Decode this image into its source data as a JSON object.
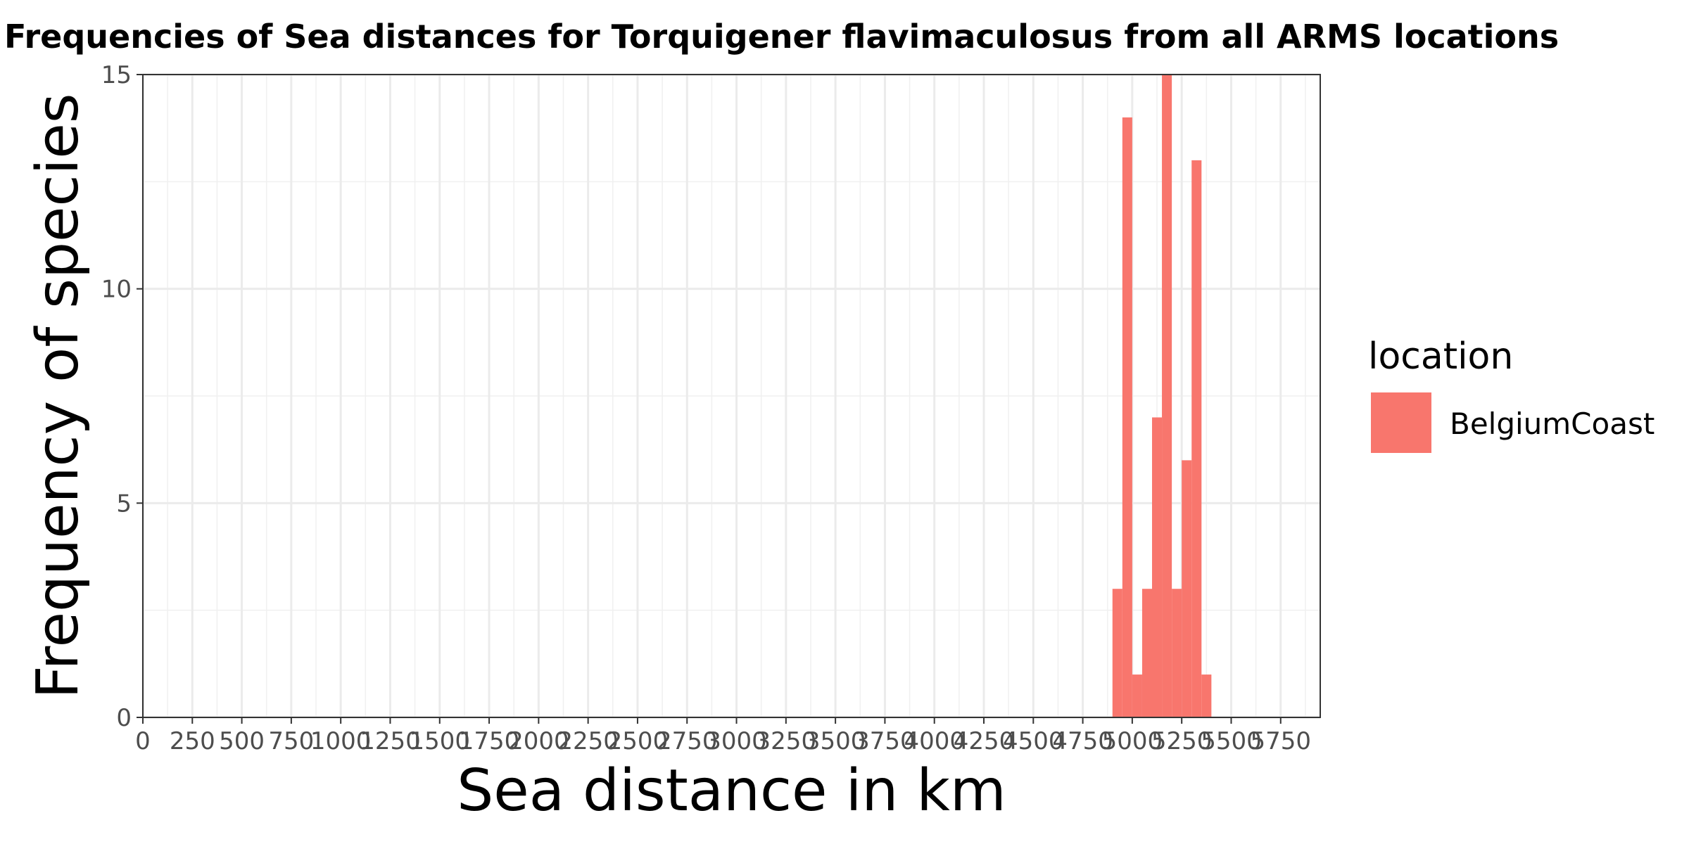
{
  "chart_data": {
    "type": "bar",
    "title": "Frequencies of Sea distances for Torquigener flavimaculosus from all ARMS locations",
    "xlabel": "Sea distance in km",
    "ylabel": "Frequency of species",
    "xlim": [
      0,
      5950
    ],
    "ylim": [
      0,
      15
    ],
    "x_ticks": [
      0,
      250,
      500,
      750,
      1000,
      1250,
      1500,
      1750,
      2000,
      2250,
      2500,
      2750,
      3000,
      3250,
      3500,
      3750,
      4000,
      4250,
      4500,
      4750,
      5000,
      5250,
      5500,
      5750
    ],
    "x_tick_labels": [
      "0",
      "250",
      "500",
      "750",
      "1000",
      "1250",
      "1500",
      "1750",
      "2000",
      "2250",
      "2500",
      "2750",
      "3000",
      "3250",
      "3500",
      "3750",
      "4000",
      "4250",
      "4500",
      "4750",
      "5000",
      "5250",
      "5500",
      "5750"
    ],
    "y_ticks": [
      0,
      5,
      10,
      15
    ],
    "y_tick_labels": [
      "0",
      "5",
      "10",
      "15"
    ],
    "grid": true,
    "legend": {
      "title": "location",
      "position": "right",
      "entries": [
        "BelgiumCoast"
      ]
    },
    "series": [
      {
        "name": "BelgiumCoast",
        "color": "#F8766D",
        "bin_width": 50,
        "bins": [
          {
            "start": 4900,
            "end": 4950,
            "count": 3
          },
          {
            "start": 4950,
            "end": 5000,
            "count": 14
          },
          {
            "start": 5000,
            "end": 5050,
            "count": 1
          },
          {
            "start": 5050,
            "end": 5100,
            "count": 3
          },
          {
            "start": 5100,
            "end": 5150,
            "count": 7
          },
          {
            "start": 5150,
            "end": 5200,
            "count": 15
          },
          {
            "start": 5200,
            "end": 5250,
            "count": 3
          },
          {
            "start": 5250,
            "end": 5300,
            "count": 6
          },
          {
            "start": 5300,
            "end": 5350,
            "count": 13
          },
          {
            "start": 5350,
            "end": 5400,
            "count": 1
          }
        ]
      }
    ]
  }
}
